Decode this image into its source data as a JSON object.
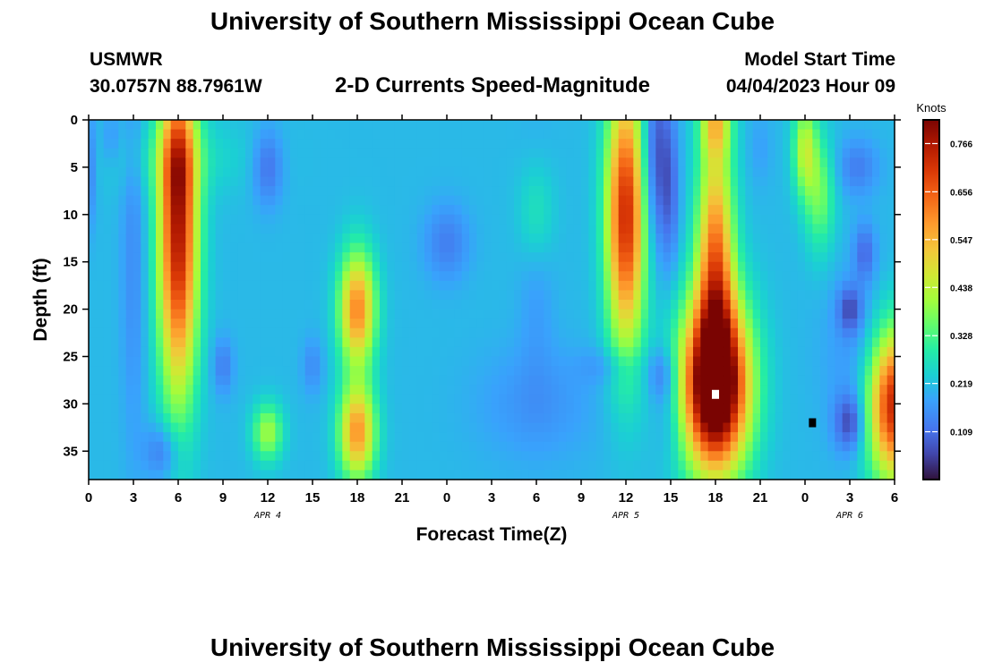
{
  "header": {
    "title": "University of Southern Mississippi Ocean Cube",
    "station": "USMWR",
    "coords": "30.0757N  88.7961W",
    "subtitle": "2-D Currents Speed-Magnitude",
    "model_label": "Model Start Time",
    "model_time": "04/04/2023 Hour 09"
  },
  "footer": {
    "title": "University of Southern Mississippi Ocean Cube"
  },
  "chart_data": {
    "type": "heatmap",
    "title": "2-D Currents Speed-Magnitude",
    "xlabel": "Forecast Time(Z)",
    "ylabel": "Depth (ft)",
    "x_ticks": [
      "0",
      "3",
      "6",
      "9",
      "12",
      "15",
      "18",
      "21",
      "0",
      "3",
      "6",
      "9",
      "12",
      "15",
      "18",
      "21",
      "0",
      "3",
      "6"
    ],
    "day_labels": [
      {
        "label": "APR 4",
        "hour": 12
      },
      {
        "label": "APR 5",
        "hour": 36
      },
      {
        "label": "APR 6",
        "hour": 51
      }
    ],
    "xlim_hours": [
      0,
      54
    ],
    "y_ticks": [
      0,
      5,
      10,
      15,
      20,
      25,
      30,
      35
    ],
    "ylim": [
      0,
      38
    ],
    "y_inverted": true,
    "colorbar": {
      "label": "Knots",
      "ticks": [
        "0.766",
        "0.656",
        "0.547",
        "0.438",
        "0.328",
        "0.219",
        "0.109"
      ],
      "range": [
        0,
        0.82
      ]
    },
    "blobs": [
      {
        "hour": 6,
        "depth": 12,
        "sx": 1.3,
        "sy": 17,
        "value": 0.55
      },
      {
        "hour": 6,
        "depth": 4,
        "sx": 1.0,
        "sy": 6,
        "value": 0.1
      },
      {
        "hour": 18,
        "depth": 20,
        "sx": 1.2,
        "sy": 6,
        "value": 0.4
      },
      {
        "hour": 18,
        "depth": 33,
        "sx": 1.2,
        "sy": 5,
        "value": 0.38
      },
      {
        "hour": 12,
        "depth": 33,
        "sx": 1.0,
        "sy": 3,
        "value": 0.2
      },
      {
        "hour": 6,
        "depth": 4,
        "sx": 5,
        "sy": 4,
        "value": 0.05
      },
      {
        "hour": 30,
        "depth": 10,
        "sx": 1.2,
        "sy": 6,
        "value": 0.1
      },
      {
        "hour": 30,
        "depth": 14,
        "sx": 1.2,
        "sy": 12,
        "value": -0.05
      },
      {
        "hour": 30,
        "depth": 30,
        "sx": 4,
        "sy": 6,
        "value": -0.05
      },
      {
        "hour": 36,
        "depth": 10,
        "sx": 1.3,
        "sy": 14,
        "value": 0.52
      },
      {
        "hour": 42,
        "depth": 28,
        "sx": 2.2,
        "sy": 9,
        "value": 0.78
      },
      {
        "hour": 42,
        "depth": 14,
        "sx": 1.2,
        "sy": 12,
        "value": 0.4
      },
      {
        "hour": 42,
        "depth": 0,
        "sx": 1.0,
        "sy": 4,
        "value": 0.25
      },
      {
        "hour": 48,
        "depth": 3,
        "sx": 0.8,
        "sy": 5,
        "value": 0.22
      },
      {
        "hour": 54,
        "depth": 30,
        "sx": 1.8,
        "sy": 8,
        "value": 0.55
      },
      {
        "hour": 3,
        "depth": 14,
        "sx": 0.8,
        "sy": 20,
        "value": -0.06
      },
      {
        "hour": 5,
        "depth": 35,
        "sx": 1.2,
        "sy": 3,
        "value": -0.1
      },
      {
        "hour": 12,
        "depth": 5,
        "sx": 1.0,
        "sy": 4,
        "value": -0.1
      },
      {
        "hour": 24,
        "depth": 13,
        "sx": 1.5,
        "sy": 4,
        "value": -0.08
      },
      {
        "hour": 9,
        "depth": 26,
        "sx": 0.7,
        "sy": 3,
        "value": -0.08
      },
      {
        "hour": 15,
        "depth": 26,
        "sx": 0.7,
        "sy": 3,
        "value": -0.06
      },
      {
        "hour": 35,
        "depth": 26,
        "sx": 2.0,
        "sy": 2,
        "value": -0.05
      },
      {
        "hour": 38.5,
        "depth": 27,
        "sx": 1.0,
        "sy": 3,
        "value": -0.1
      },
      {
        "hour": 39,
        "depth": 32,
        "sx": 1.0,
        "sy": 4,
        "value": -0.05
      },
      {
        "hour": 38,
        "depth": 4,
        "sx": 1.0,
        "sy": 10,
        "value": -0.15
      },
      {
        "hour": 39,
        "depth": 8,
        "sx": 0.6,
        "sy": 8,
        "value": -0.08
      },
      {
        "hour": 51,
        "depth": 32,
        "sx": 1.0,
        "sy": 3,
        "value": -0.14
      },
      {
        "hour": 51,
        "depth": 20,
        "sx": 0.8,
        "sy": 2.5,
        "value": -0.12
      },
      {
        "hour": 52,
        "depth": 14,
        "sx": 0.7,
        "sy": 3,
        "value": -0.1
      },
      {
        "hour": 52,
        "depth": 25,
        "sx": 2.5,
        "sy": 9,
        "value": -0.06
      },
      {
        "hour": 51.5,
        "depth": 5,
        "sx": 1.4,
        "sy": 3,
        "value": -0.08
      },
      {
        "hour": 49,
        "depth": 8,
        "sx": 1.0,
        "sy": 6,
        "value": 0.15
      },
      {
        "hour": 0,
        "depth": 5,
        "sx": 0.5,
        "sy": 6,
        "value": -0.08
      },
      {
        "hour": 1.5,
        "depth": 2,
        "sx": 0.6,
        "sy": 3,
        "value": -0.05
      },
      {
        "hour": 45,
        "depth": 3,
        "sx": 0.8,
        "sy": 4,
        "value": -0.03
      }
    ],
    "base_value": 0.21,
    "markers": [
      {
        "hour": 42,
        "depth": 29,
        "color": "#ffffff"
      },
      {
        "hour": 48.5,
        "depth": 32,
        "color": "#000000"
      }
    ]
  }
}
